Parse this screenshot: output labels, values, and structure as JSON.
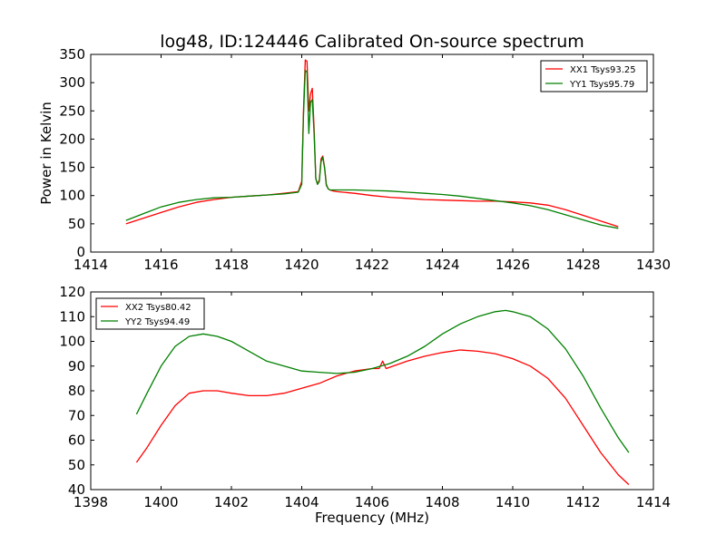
{
  "chart_data": [
    {
      "type": "line",
      "title": "log48, ID:124446 Calibrated On-source spectrum",
      "xlabel": "",
      "ylabel": "Power in Kelvin",
      "xlim": [
        1414,
        1430
      ],
      "ylim": [
        0,
        350
      ],
      "xticks": [
        "1414",
        "1416",
        "1418",
        "1420",
        "1422",
        "1424",
        "1426",
        "1428",
        "1430"
      ],
      "yticks": [
        "0",
        "50",
        "100",
        "150",
        "200",
        "250",
        "300",
        "350"
      ],
      "legend_position": "top-right",
      "grid": false,
      "series": [
        {
          "name": "XX1 Tsys93.25",
          "color": "#ff0000",
          "x": [
            1415.0,
            1415.5,
            1416.0,
            1416.5,
            1417.0,
            1417.5,
            1418.0,
            1418.5,
            1419.0,
            1419.5,
            1419.9,
            1420.0,
            1420.05,
            1420.1,
            1420.15,
            1420.2,
            1420.25,
            1420.3,
            1420.35,
            1420.4,
            1420.45,
            1420.5,
            1420.55,
            1420.6,
            1420.65,
            1420.7,
            1420.75,
            1420.8,
            1420.9,
            1421.0,
            1421.5,
            1422.0,
            1422.5,
            1423.0,
            1423.5,
            1424.0,
            1424.5,
            1425.0,
            1425.5,
            1426.0,
            1426.5,
            1427.0,
            1427.5,
            1428.0,
            1428.5,
            1429.0
          ],
          "y": [
            50,
            60,
            70,
            80,
            88,
            93,
            97,
            99,
            101,
            104,
            107,
            125,
            250,
            340,
            338,
            250,
            280,
            290,
            220,
            130,
            120,
            128,
            165,
            170,
            150,
            120,
            112,
            110,
            108,
            107,
            104,
            100,
            97,
            95,
            93,
            92,
            91,
            90,
            90,
            89,
            87,
            83,
            75,
            65,
            55,
            45
          ]
        },
        {
          "name": "YY1 Tsys95.79",
          "color": "#008000",
          "x": [
            1415.0,
            1415.5,
            1416.0,
            1416.5,
            1417.0,
            1417.5,
            1418.0,
            1418.5,
            1419.0,
            1419.5,
            1419.9,
            1420.0,
            1420.05,
            1420.1,
            1420.15,
            1420.2,
            1420.25,
            1420.3,
            1420.35,
            1420.4,
            1420.45,
            1420.5,
            1420.55,
            1420.6,
            1420.65,
            1420.7,
            1420.75,
            1420.8,
            1420.9,
            1421.0,
            1421.5,
            1422.0,
            1422.5,
            1423.0,
            1423.5,
            1424.0,
            1424.5,
            1425.0,
            1425.5,
            1426.0,
            1426.5,
            1427.0,
            1427.5,
            1428.0,
            1428.5,
            1429.0
          ],
          "y": [
            56,
            68,
            80,
            88,
            93,
            96,
            97,
            99,
            101,
            103,
            106,
            120,
            240,
            322,
            318,
            210,
            265,
            270,
            210,
            130,
            120,
            125,
            160,
            168,
            148,
            118,
            112,
            110,
            110,
            110,
            110,
            109,
            108,
            106,
            104,
            102,
            99,
            95,
            91,
            87,
            82,
            75,
            66,
            57,
            48,
            42
          ]
        }
      ]
    },
    {
      "type": "line",
      "title": "",
      "xlabel": "Frequency (MHz)",
      "ylabel": "",
      "xlim": [
        1398,
        1414
      ],
      "ylim": [
        40,
        120
      ],
      "xticks": [
        "1398",
        "1400",
        "1402",
        "1404",
        "1406",
        "1408",
        "1410",
        "1412",
        "1414"
      ],
      "yticks": [
        "40",
        "50",
        "60",
        "70",
        "80",
        "90",
        "100",
        "110",
        "120"
      ],
      "legend_position": "top-left",
      "grid": false,
      "series": [
        {
          "name": "XX2 Tsys80.42",
          "color": "#ff0000",
          "x": [
            1399.3,
            1399.6,
            1400.0,
            1400.4,
            1400.8,
            1401.2,
            1401.6,
            1402.0,
            1402.5,
            1403.0,
            1403.5,
            1404.0,
            1404.5,
            1405.0,
            1405.5,
            1406.0,
            1406.2,
            1406.3,
            1406.4,
            1406.6,
            1407.0,
            1407.5,
            1408.0,
            1408.5,
            1409.0,
            1409.5,
            1410.0,
            1410.5,
            1411.0,
            1411.5,
            1412.0,
            1412.5,
            1413.0,
            1413.3
          ],
          "y": [
            51,
            57,
            66,
            74,
            79,
            80,
            80,
            79,
            78,
            78,
            79,
            81,
            83,
            86,
            88,
            89,
            89,
            92,
            89,
            90,
            92,
            94,
            95.5,
            96.5,
            96,
            95,
            93,
            90,
            85,
            77,
            66,
            55,
            46,
            42
          ]
        },
        {
          "name": "YY2 Tsys94.49",
          "color": "#008000",
          "x": [
            1399.3,
            1399.6,
            1400.0,
            1400.4,
            1400.8,
            1401.2,
            1401.6,
            1402.0,
            1402.5,
            1403.0,
            1403.5,
            1404.0,
            1404.5,
            1405.0,
            1405.5,
            1406.0,
            1406.5,
            1407.0,
            1407.5,
            1408.0,
            1408.5,
            1409.0,
            1409.5,
            1409.8,
            1410.0,
            1410.5,
            1411.0,
            1411.5,
            1412.0,
            1412.5,
            1413.0,
            1413.3
          ],
          "y": [
            70.5,
            79,
            90,
            98,
            102,
            103,
            102,
            100,
            96,
            92,
            90,
            88,
            87.5,
            87,
            87.5,
            89,
            91,
            94,
            98,
            103,
            107,
            110,
            112,
            112.5,
            112,
            110,
            105,
            97,
            86,
            73,
            61,
            55
          ]
        }
      ]
    }
  ]
}
